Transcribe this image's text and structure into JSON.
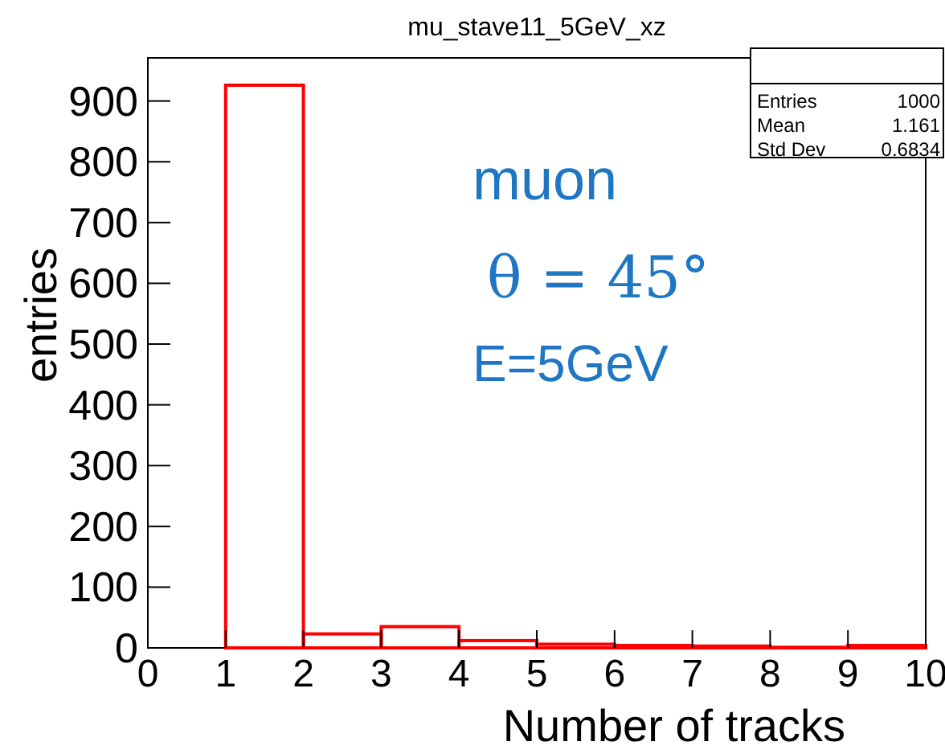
{
  "chart_data": {
    "type": "histogram",
    "title": "mu_stave11_5GeV_xz",
    "xlabel": "Number of tracks",
    "ylabel": "entries",
    "bins": [
      0,
      1,
      2,
      3,
      4,
      5,
      6,
      7,
      8,
      9,
      10
    ],
    "values": [
      0,
      926,
      23,
      35,
      12,
      6,
      4,
      3,
      1,
      4
    ],
    "color": "#ff0000",
    "xlim": [
      0,
      10
    ],
    "xticks": [
      0,
      1,
      2,
      3,
      4,
      5,
      6,
      7,
      8,
      9,
      10
    ],
    "ylim": [
      0,
      971
    ],
    "yticks": [
      0,
      100,
      200,
      300,
      400,
      500,
      600,
      700,
      800,
      900
    ],
    "annotations": [
      "Entries",
      "1000",
      "Mean",
      "1.161",
      "Std Dev",
      "0.6834",
      "muon",
      "θ = 45°",
      "E=5GeV"
    ]
  }
}
